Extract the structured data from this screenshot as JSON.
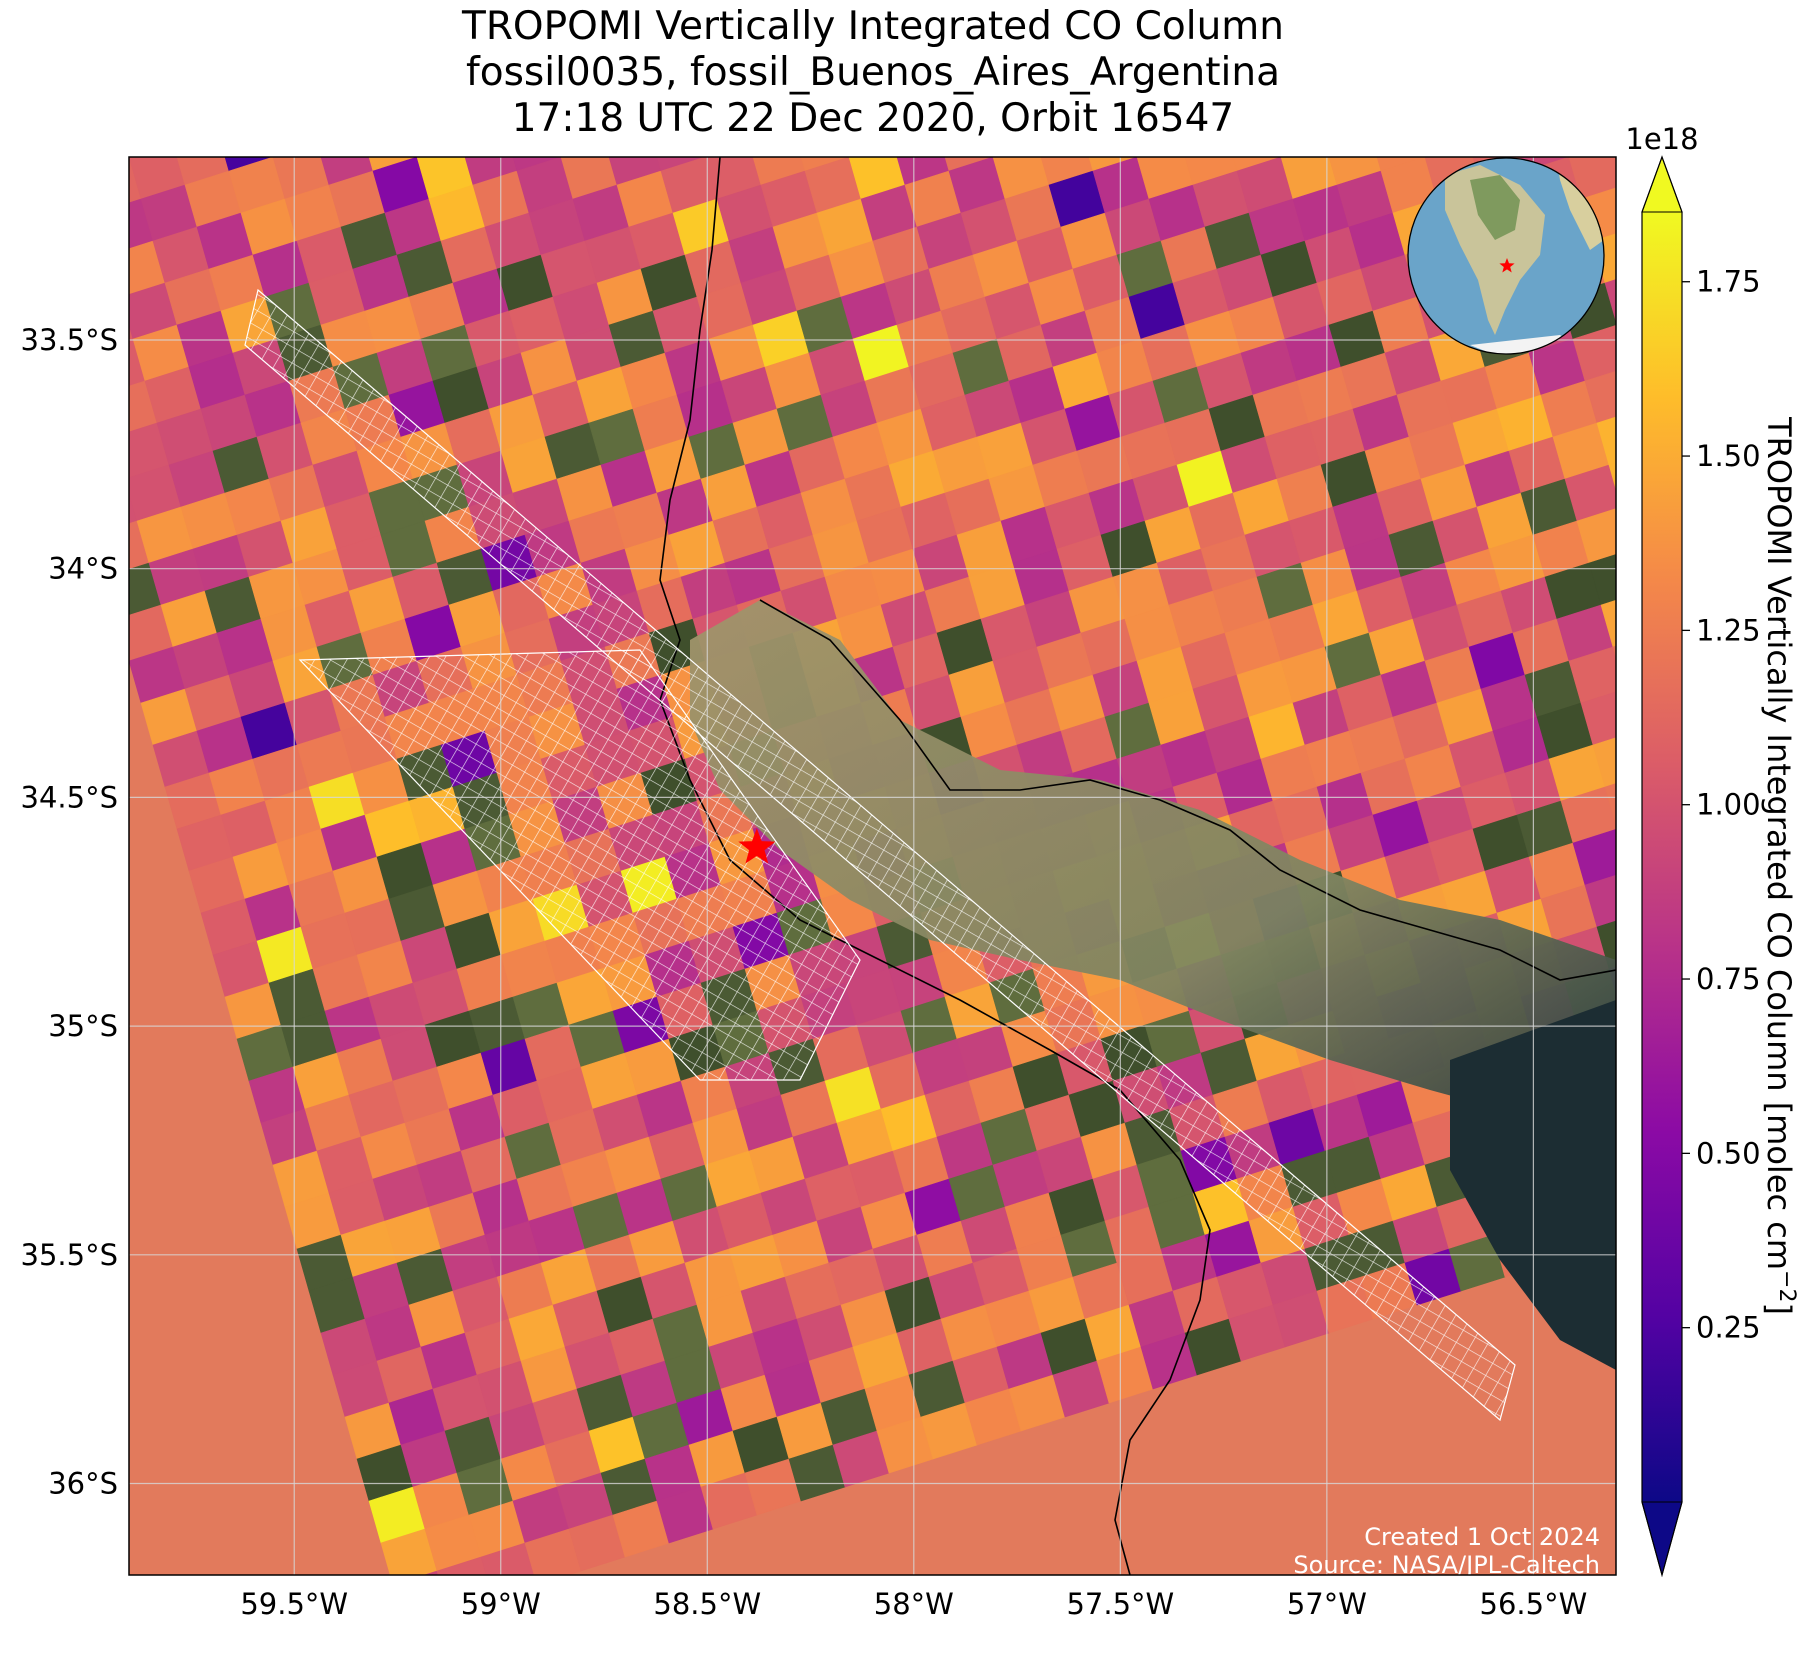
{
  "title": {
    "line1": "TROPOMI Vertically Integrated CO Column",
    "line2": "fossil0035, fossil_Buenos_Aires_Argentina",
    "line3": "17:18 UTC 22 Dec 2020, Orbit 16547"
  },
  "map": {
    "extent": {
      "lon": [
        -59.9,
        -56.3
      ],
      "lat": [
        -36.2,
        -33.1
      ]
    },
    "x_ticks": [
      {
        "lon": -59.5,
        "label": "59.5°W"
      },
      {
        "lon": -59.0,
        "label": "59°W"
      },
      {
        "lon": -58.5,
        "label": "58.5°W"
      },
      {
        "lon": -58.0,
        "label": "58°W"
      },
      {
        "lon": -57.5,
        "label": "57.5°W"
      },
      {
        "lon": -57.0,
        "label": "57°W"
      },
      {
        "lon": -56.5,
        "label": "56.5°W"
      }
    ],
    "y_ticks": [
      {
        "lat": -33.5,
        "label": "33.5°S"
      },
      {
        "lat": -34.0,
        "label": "34°S"
      },
      {
        "lat": -34.5,
        "label": "34.5°S"
      },
      {
        "lat": -35.0,
        "label": "35°S"
      },
      {
        "lat": -35.5,
        "label": "35.5°S"
      },
      {
        "lat": -36.0,
        "label": "36°S"
      }
    ],
    "grid": true,
    "site_marker": {
      "lon": -58.38,
      "lat": -34.61,
      "color": "#ff0000",
      "icon": "star-icon"
    },
    "target_overlay": {
      "color": "#ffffff",
      "description_hidden": true
    },
    "credit": {
      "line1": "Created 1 Oct 2024",
      "line2": "Source: NASA/JPL-Caltech"
    },
    "inset_globe": {
      "icon": "globe-icon",
      "marker_color": "#ff0000"
    }
  },
  "colorbar": {
    "colormap": "plasma",
    "label": "TROPOMI Vertically Integrated CO Column [molec cm",
    "label_exponent": "−2",
    "label_close": "]",
    "scale_label": "1e18",
    "range": [
      0.0,
      1.85
    ],
    "extend": "both",
    "ticks": [
      {
        "value": 0.25,
        "label": "0.25"
      },
      {
        "value": 0.5,
        "label": "0.50"
      },
      {
        "value": 0.75,
        "label": "0.75"
      },
      {
        "value": 1.0,
        "label": "1.00"
      },
      {
        "value": 1.25,
        "label": "1.25"
      },
      {
        "value": 1.5,
        "label": "1.50"
      },
      {
        "value": 1.75,
        "label": "1.75"
      }
    ],
    "colors": [
      "#0d0887",
      "#5302a3",
      "#8b0aa5",
      "#b83289",
      "#db5c68",
      "#f48849",
      "#febd2a",
      "#f0f921"
    ]
  }
}
